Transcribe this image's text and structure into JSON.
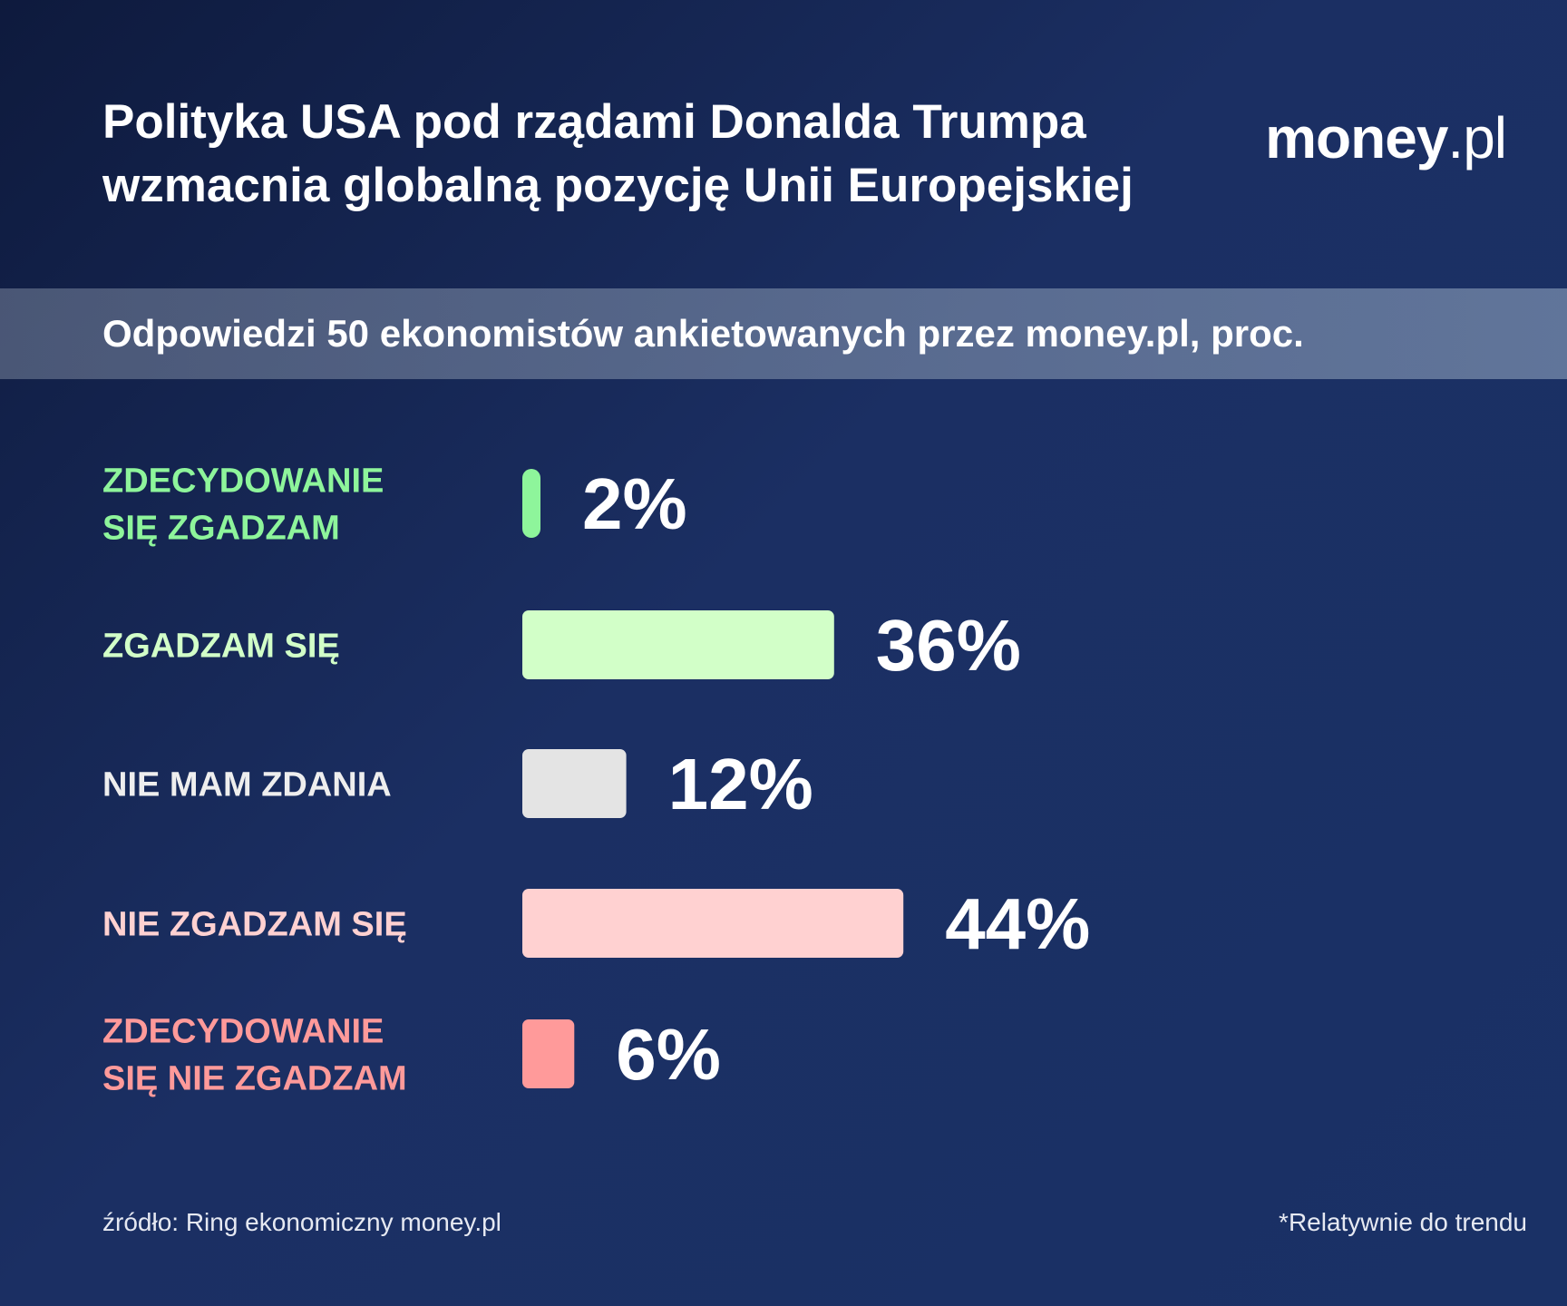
{
  "header": {
    "title_line1": "Polityka USA pod rządami Donalda Trumpa",
    "title_line2": "wzmacnia globalną pozycję Unii Europejskiej",
    "logo_bold": "money",
    "logo_light": ".pl"
  },
  "subtitle": "Odpowiedzi 50 ekonomistów ankietowanych przez money.pl, proc.",
  "footer": {
    "source": "źródło: Ring ekonomiczny money.pl",
    "note": "*Relatywnie do trendu"
  },
  "chart_data": {
    "type": "bar",
    "orientation": "horizontal",
    "title": "",
    "xlabel": "",
    "ylabel": "",
    "categories": [
      [
        "ZDECYDOWANIE",
        "SIĘ ZGADZAM"
      ],
      [
        "ZGADZAM SIĘ"
      ],
      [
        "NIE MAM ZDANIA"
      ],
      [
        "NIE ZGADZAM SIĘ"
      ],
      [
        "ZDECYDOWANIE",
        "SIĘ NIE ZGADZAM"
      ]
    ],
    "values": [
      2,
      36,
      12,
      44,
      6
    ],
    "value_labels": [
      "2%",
      "36%",
      "12%",
      "44%",
      "6%"
    ],
    "unit": "%",
    "colors": [
      "#8ef59b",
      "#d2ffc8",
      "#e4e4e4",
      "#ffd1d1",
      "#ff9a9a"
    ],
    "label_colors": [
      "#8ef59b",
      "#d2ffc8",
      "#eeeeee",
      "#ffd1d1",
      "#ff9a9a"
    ],
    "grid": false,
    "legend": "none"
  }
}
